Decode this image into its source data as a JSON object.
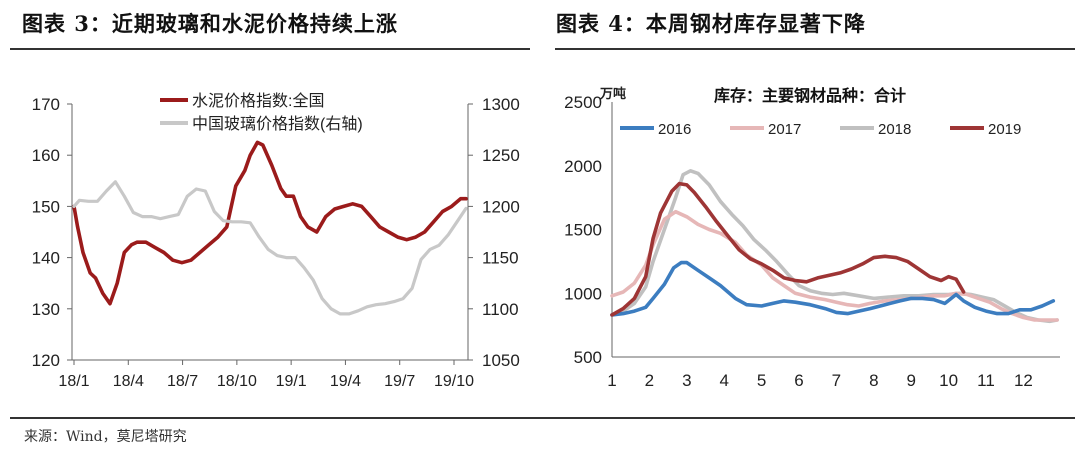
{
  "figures": {
    "left_title": "图表 3：近期玻璃和水泥价格持续上涨",
    "right_title": "图表 4：本周钢材库存显著下降",
    "source": "来源：Wind，莫尼塔研究"
  },
  "colors": {
    "dark_red": "#9b1b1b",
    "light_gray": "#c8c8c8",
    "blue": "#3c7dc0",
    "pink": "#e6b7b7",
    "gray2018": "#c0c0c0",
    "red2019": "#9e3535"
  },
  "chart_data": [
    {
      "type": "line",
      "title": "",
      "x_ticks": [
        "18/1",
        "18/4",
        "18/7",
        "18/10",
        "19/1",
        "19/4",
        "19/7",
        "19/10"
      ],
      "ylim": [
        120,
        170
      ],
      "y_ticks": [
        "120",
        "130",
        "140",
        "150",
        "160",
        "170"
      ],
      "y2lim": [
        1050,
        1300
      ],
      "y2_ticks": [
        "1050",
        "1100",
        "1150",
        "1200",
        "1250",
        "1300"
      ],
      "legend_position": "top-left",
      "series": [
        {
          "name": "水泥价格指数:全国",
          "axis": "left",
          "color": "#9b1b1b",
          "x": [
            0,
            0.2,
            0.5,
            0.9,
            1.2,
            1.6,
            2.0,
            2.4,
            2.8,
            3.2,
            3.5,
            4.0,
            4.5,
            5.0,
            5.5,
            6.0,
            6.5,
            7.0,
            7.5,
            8.0,
            8.5,
            9.0,
            9.5,
            9.8,
            10.2,
            10.5,
            11.0,
            11.5,
            11.8,
            12.2,
            12.6,
            13.0,
            13.5,
            14.0,
            14.5,
            15.0,
            15.5,
            16.0,
            16.5,
            17.0,
            17.5,
            18.0,
            18.5,
            19.0,
            19.5,
            20.0,
            20.5,
            21.0,
            21.5,
            21.8
          ],
          "y": [
            150,
            146,
            141,
            137,
            136,
            133,
            131,
            135,
            141,
            142.5,
            143,
            143,
            142,
            141,
            139.5,
            139,
            139.5,
            141,
            142.5,
            144,
            146,
            154,
            157,
            160,
            162.5,
            162,
            158,
            153.5,
            152,
            152,
            148,
            146,
            145,
            148,
            149.5,
            150,
            150.5,
            150,
            148,
            146,
            145,
            144,
            143.5,
            144,
            145,
            147,
            149,
            150,
            151.5,
            151.5
          ]
        },
        {
          "name": "中国玻璃价格指数(右轴)",
          "axis": "right",
          "color": "#c8c8c8",
          "x": [
            0,
            0.3,
            0.8,
            1.3,
            1.8,
            2.3,
            2.8,
            3.3,
            3.8,
            4.3,
            4.8,
            5.3,
            5.8,
            6.3,
            6.8,
            7.3,
            7.8,
            8.3,
            8.8,
            9.3,
            9.8,
            10.3,
            10.8,
            11.3,
            11.8,
            12.3,
            12.8,
            13.3,
            13.8,
            14.3,
            14.8,
            15.3,
            15.8,
            16.3,
            16.8,
            17.3,
            17.8,
            18.3,
            18.8,
            19.3,
            19.8,
            20.3,
            20.8,
            21.3,
            21.8
          ],
          "y": [
            1200,
            1206,
            1205,
            1205,
            1215,
            1224,
            1210,
            1194,
            1190,
            1190,
            1188,
            1190,
            1192,
            1210,
            1217,
            1215,
            1195,
            1186,
            1185,
            1185,
            1184,
            1170,
            1158,
            1152,
            1150,
            1150,
            1140,
            1128,
            1110,
            1100,
            1095,
            1095,
            1098,
            1102,
            1104,
            1105,
            1107,
            1110,
            1120,
            1148,
            1158,
            1162,
            1172,
            1185,
            1198
          ]
        }
      ]
    },
    {
      "type": "line",
      "title": "库存：主要钢材品种：合计",
      "unit_label": "万吨",
      "x_ticks": [
        "1",
        "2",
        "3",
        "4",
        "5",
        "6",
        "7",
        "8",
        "9",
        "10",
        "11",
        "12"
      ],
      "ylim": [
        500,
        2500
      ],
      "y_ticks": [
        "500",
        "1000",
        "1500",
        "2000",
        "2500"
      ],
      "legend_position": "top",
      "series": [
        {
          "name": "2016",
          "color": "#3c7dc0",
          "x": [
            1,
            1.3,
            1.6,
            1.9,
            2.1,
            2.4,
            2.65,
            2.85,
            3.0,
            3.3,
            3.6,
            3.9,
            4.3,
            4.6,
            5.0,
            5.3,
            5.6,
            5.9,
            6.3,
            6.7,
            7.0,
            7.3,
            7.6,
            7.9,
            8.3,
            8.7,
            9.0,
            9.3,
            9.6,
            9.9,
            10.2,
            10.4,
            10.7,
            11.0,
            11.3,
            11.6,
            11.9,
            12.2,
            12.5,
            12.8
          ],
          "y": [
            830,
            840,
            860,
            890,
            960,
            1070,
            1200,
            1240,
            1240,
            1180,
            1120,
            1060,
            960,
            910,
            900,
            920,
            940,
            930,
            910,
            880,
            850,
            840,
            860,
            880,
            910,
            940,
            960,
            960,
            950,
            920,
            990,
            940,
            890,
            860,
            840,
            840,
            870,
            870,
            900,
            940
          ]
        },
        {
          "name": "2017",
          "color": "#e6b7b7",
          "x": [
            1,
            1.3,
            1.6,
            1.9,
            2.1,
            2.4,
            2.7,
            3.0,
            3.3,
            3.6,
            3.9,
            4.3,
            4.6,
            5.0,
            5.3,
            5.6,
            5.9,
            6.3,
            6.7,
            7.0,
            7.3,
            7.6,
            7.9,
            8.3,
            8.7,
            9.0,
            9.3,
            9.6,
            9.9,
            10.2,
            10.5,
            10.8,
            11.1,
            11.4,
            11.7,
            12.0,
            12.3,
            12.6,
            12.9
          ],
          "y": [
            980,
            1010,
            1080,
            1220,
            1380,
            1580,
            1640,
            1600,
            1540,
            1500,
            1470,
            1400,
            1300,
            1220,
            1120,
            1060,
            1000,
            970,
            950,
            930,
            910,
            900,
            920,
            940,
            950,
            960,
            970,
            980,
            980,
            1000,
            990,
            960,
            930,
            880,
            840,
            810,
            790,
            790,
            790
          ]
        },
        {
          "name": "2018",
          "color": "#c0c0c0",
          "x": [
            1,
            1.3,
            1.6,
            1.9,
            2.1,
            2.4,
            2.7,
            2.9,
            3.1,
            3.3,
            3.6,
            3.9,
            4.2,
            4.5,
            4.8,
            5.1,
            5.4,
            5.7,
            6.0,
            6.3,
            6.6,
            6.9,
            7.2,
            7.6,
            8.0,
            8.4,
            8.8,
            9.2,
            9.6,
            10.0,
            10.3,
            10.6,
            10.9,
            11.2,
            11.5,
            11.8,
            12.1,
            12.4,
            12.7,
            12.9
          ],
          "y": [
            830,
            860,
            920,
            1050,
            1250,
            1500,
            1750,
            1930,
            1960,
            1940,
            1850,
            1720,
            1620,
            1530,
            1420,
            1340,
            1250,
            1150,
            1060,
            1020,
            1000,
            990,
            1000,
            980,
            960,
            970,
            980,
            980,
            990,
            990,
            1000,
            990,
            970,
            950,
            900,
            850,
            810,
            790,
            780,
            790
          ]
        },
        {
          "name": "2019",
          "color": "#9e3535",
          "x": [
            1,
            1.3,
            1.6,
            1.9,
            2.1,
            2.3,
            2.6,
            2.8,
            3.0,
            3.2,
            3.5,
            3.8,
            4.1,
            4.4,
            4.7,
            5.0,
            5.3,
            5.6,
            5.9,
            6.2,
            6.5,
            6.8,
            7.1,
            7.4,
            7.7,
            8.0,
            8.3,
            8.6,
            8.9,
            9.2,
            9.5,
            9.8,
            10.0,
            10.2,
            10.4
          ],
          "y": [
            830,
            880,
            960,
            1130,
            1430,
            1630,
            1800,
            1860,
            1850,
            1790,
            1680,
            1560,
            1450,
            1340,
            1270,
            1230,
            1180,
            1120,
            1100,
            1090,
            1120,
            1140,
            1160,
            1190,
            1230,
            1280,
            1290,
            1280,
            1250,
            1190,
            1130,
            1100,
            1130,
            1110,
            1010
          ]
        }
      ]
    }
  ]
}
